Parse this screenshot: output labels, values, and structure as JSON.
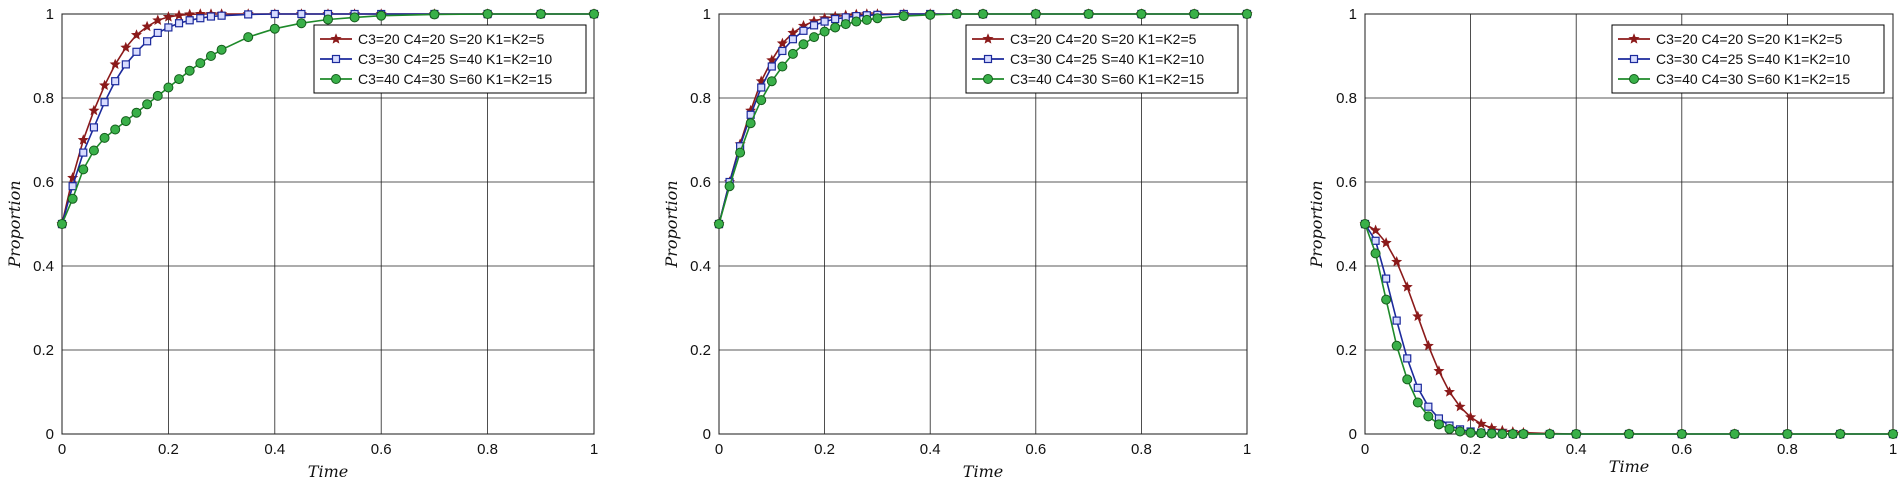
{
  "chart_data": [
    {
      "type": "line",
      "title": "",
      "xlabel": "Time",
      "ylabel": "Proportion",
      "xlim": [
        0,
        1
      ],
      "ylim": [
        0,
        1
      ],
      "xticks": [
        "0",
        "0.2",
        "0.4",
        "0.6",
        "0.8",
        "1"
      ],
      "yticks": [
        "0",
        "0.2",
        "0.4",
        "0.6",
        "0.8",
        "1"
      ],
      "grid": true,
      "legend": "top-right",
      "x": [
        0,
        0.02,
        0.04,
        0.06,
        0.08,
        0.1,
        0.12,
        0.14,
        0.16,
        0.18,
        0.2,
        0.22,
        0.24,
        0.26,
        0.28,
        0.3,
        0.35,
        0.4,
        0.45,
        0.5,
        0.55,
        0.6,
        0.7,
        0.8,
        0.9,
        1.0
      ],
      "series": [
        {
          "name": "C3=20 C4=20 S=20 K1=K2=5",
          "color": "#8b1a1a",
          "marker": "star",
          "values": [
            0.5,
            0.61,
            0.7,
            0.77,
            0.83,
            0.88,
            0.92,
            0.95,
            0.97,
            0.985,
            0.993,
            0.997,
            0.999,
            1,
            1,
            1,
            1,
            1,
            1,
            1,
            1,
            1,
            1,
            1,
            1,
            1
          ]
        },
        {
          "name": "C3=30 C4=25 S=40 K1=K2=10",
          "color": "#1c2a9c",
          "marker": "square",
          "values": [
            0.5,
            0.59,
            0.67,
            0.73,
            0.79,
            0.84,
            0.88,
            0.91,
            0.935,
            0.955,
            0.968,
            0.978,
            0.985,
            0.99,
            0.994,
            0.996,
            0.999,
            1,
            1,
            1,
            1,
            1,
            1,
            1,
            1,
            1
          ]
        },
        {
          "name": "C3=40 C4=30 S=60 K1=K2=15",
          "color": "#1e8a2a",
          "marker": "circle",
          "values": [
            0.5,
            0.56,
            0.63,
            0.675,
            0.705,
            0.725,
            0.745,
            0.765,
            0.785,
            0.805,
            0.825,
            0.845,
            0.865,
            0.883,
            0.9,
            0.915,
            0.945,
            0.965,
            0.978,
            0.987,
            0.992,
            0.996,
            0.999,
            1,
            1,
            1
          ]
        }
      ]
    },
    {
      "type": "line",
      "title": "",
      "xlabel": "Time",
      "ylabel": "Proportion",
      "xlim": [
        0,
        1
      ],
      "ylim": [
        0,
        1
      ],
      "xticks": [
        "0",
        "0.2",
        "0.4",
        "0.6",
        "0.8",
        "1"
      ],
      "yticks": [
        "0",
        "0.2",
        "0.4",
        "0.6",
        "0.8",
        "1"
      ],
      "grid": true,
      "legend": "top-right",
      "x": [
        0,
        0.02,
        0.04,
        0.06,
        0.08,
        0.1,
        0.12,
        0.14,
        0.16,
        0.18,
        0.2,
        0.22,
        0.24,
        0.26,
        0.28,
        0.3,
        0.35,
        0.4,
        0.45,
        0.5,
        0.6,
        0.7,
        0.8,
        0.9,
        1.0
      ],
      "series": [
        {
          "name": "C3=20 C4=20 S=20 K1=K2=5",
          "color": "#8b1a1a",
          "marker": "star",
          "values": [
            0.5,
            0.6,
            0.69,
            0.77,
            0.84,
            0.89,
            0.93,
            0.955,
            0.972,
            0.983,
            0.99,
            0.994,
            0.997,
            0.999,
            1,
            1,
            1,
            1,
            1,
            1,
            1,
            1,
            1,
            1,
            1
          ]
        },
        {
          "name": "C3=30 C4=25 S=40 K1=K2=10",
          "color": "#1c2a9c",
          "marker": "square",
          "values": [
            0.5,
            0.6,
            0.685,
            0.76,
            0.825,
            0.875,
            0.912,
            0.94,
            0.96,
            0.973,
            0.982,
            0.988,
            0.992,
            0.995,
            0.997,
            0.998,
            1,
            1,
            1,
            1,
            1,
            1,
            1,
            1,
            1
          ]
        },
        {
          "name": "C3=40 C4=30 S=60 K1=K2=15",
          "color": "#1e8a2a",
          "marker": "circle",
          "values": [
            0.5,
            0.59,
            0.67,
            0.74,
            0.795,
            0.84,
            0.875,
            0.905,
            0.928,
            0.945,
            0.958,
            0.968,
            0.976,
            0.982,
            0.986,
            0.99,
            0.995,
            0.998,
            1,
            1,
            1,
            1,
            1,
            1,
            1
          ]
        }
      ]
    },
    {
      "type": "line",
      "title": "",
      "xlabel": "Time",
      "ylabel": "Proportion",
      "xlim": [
        0,
        1
      ],
      "ylim": [
        0,
        1
      ],
      "xticks": [
        "0",
        "0.2",
        "0.4",
        "0.6",
        "0.8",
        "1"
      ],
      "yticks": [
        "0",
        "0.2",
        "0.4",
        "0.6",
        "0.8",
        "1"
      ],
      "grid": true,
      "legend": "top-right",
      "x": [
        0,
        0.02,
        0.04,
        0.06,
        0.08,
        0.1,
        0.12,
        0.14,
        0.16,
        0.18,
        0.2,
        0.22,
        0.24,
        0.26,
        0.28,
        0.3,
        0.35,
        0.4,
        0.5,
        0.6,
        0.7,
        0.8,
        0.9,
        1.0
      ],
      "series": [
        {
          "name": "C3=20 C4=20 S=20 K1=K2=5",
          "color": "#8b1a1a",
          "marker": "star",
          "values": [
            0.5,
            0.485,
            0.455,
            0.41,
            0.35,
            0.28,
            0.21,
            0.15,
            0.1,
            0.065,
            0.04,
            0.024,
            0.014,
            0.008,
            0.005,
            0.003,
            0.001,
            0,
            0,
            0,
            0,
            0,
            0,
            0
          ]
        },
        {
          "name": "C3=30 C4=25 S=40 K1=K2=10",
          "color": "#1c2a9c",
          "marker": "square",
          "values": [
            0.5,
            0.46,
            0.37,
            0.27,
            0.18,
            0.11,
            0.065,
            0.037,
            0.02,
            0.011,
            0.006,
            0.003,
            0.002,
            0.001,
            0,
            0,
            0,
            0,
            0,
            0,
            0,
            0,
            0,
            0
          ]
        },
        {
          "name": "C3=40 C4=30 S=60 K1=K2=15",
          "color": "#1e8a2a",
          "marker": "circle",
          "values": [
            0.5,
            0.43,
            0.32,
            0.21,
            0.13,
            0.075,
            0.042,
            0.023,
            0.012,
            0.006,
            0.003,
            0.002,
            0.001,
            0,
            0,
            0,
            0,
            0,
            0,
            0,
            0,
            0,
            0,
            0
          ]
        }
      ]
    }
  ]
}
